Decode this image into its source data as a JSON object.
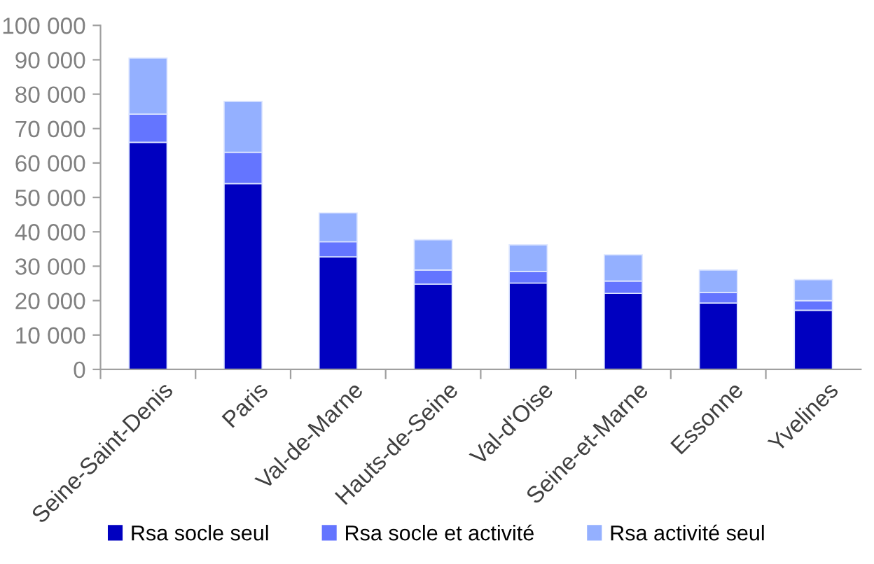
{
  "chart_data": {
    "type": "bar",
    "stacked": true,
    "categories": [
      "Seine-Saint-Denis",
      "Paris",
      "Val-de-Marne",
      "Hauts-de-Seine",
      "Val-d'Oise",
      "Seine-et-Marne",
      "Essonne",
      "Yvelines"
    ],
    "series": [
      {
        "name": "Rsa socle seul",
        "color": "#0000c0",
        "values": [
          66000,
          54000,
          32700,
          24800,
          25100,
          22100,
          19300,
          17200
        ]
      },
      {
        "name": "Rsa socle et activité",
        "color": "#6475ff",
        "values": [
          8200,
          9100,
          4400,
          4100,
          3400,
          3600,
          3100,
          2800
        ]
      },
      {
        "name": "Rsa activité seul",
        "color": "#94b0ff",
        "values": [
          16300,
          14800,
          8400,
          8800,
          7700,
          7600,
          6500,
          6100
        ]
      }
    ],
    "ylim": [
      0,
      100000
    ],
    "yticks": [
      {
        "value": 0,
        "label": "0"
      },
      {
        "value": 10000,
        "label": "10 000"
      },
      {
        "value": 20000,
        "label": "20 000"
      },
      {
        "value": 30000,
        "label": "30 000"
      },
      {
        "value": 40000,
        "label": "40 000"
      },
      {
        "value": 50000,
        "label": "50 000"
      },
      {
        "value": 60000,
        "label": "60 000"
      },
      {
        "value": 70000,
        "label": "70 000"
      },
      {
        "value": 80000,
        "label": "80 000"
      },
      {
        "value": 90000,
        "label": "90 000"
      },
      {
        "value": 100000,
        "label": "100 000"
      }
    ],
    "grid": false,
    "legend": "bottom"
  }
}
